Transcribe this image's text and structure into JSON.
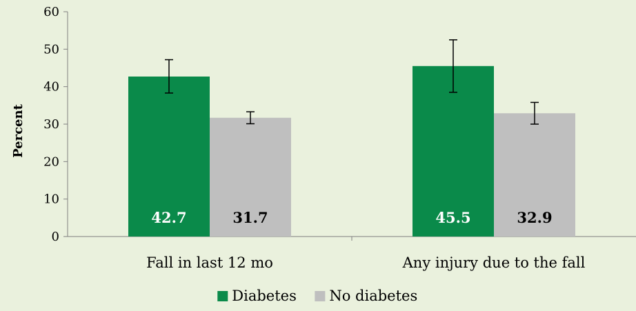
{
  "chart_data": {
    "type": "bar",
    "ylabel": "Percent",
    "xlabel": "",
    "title": "",
    "ylim": [
      0,
      60
    ],
    "yticks": [
      0,
      10,
      20,
      30,
      40,
      50,
      60
    ],
    "categories": [
      "Fall in last 12 mo",
      "Any injury due to the fall"
    ],
    "series": [
      {
        "name": "Diabetes",
        "color": "#0a8a4a",
        "label_color": "#ffffff",
        "values": [
          42.7,
          45.5
        ],
        "labels": [
          "42.7",
          "45.5"
        ],
        "error_low": [
          38.3,
          38.5
        ],
        "error_high": [
          47.2,
          52.5
        ]
      },
      {
        "name": "No diabetes",
        "color": "#bfbfbf",
        "label_color": "#000000",
        "values": [
          31.7,
          32.9
        ],
        "labels": [
          "31.7",
          "32.9"
        ],
        "error_low": [
          30.1,
          30.0
        ],
        "error_high": [
          33.3,
          35.8
        ]
      }
    ],
    "legend_position": "bottom",
    "grid": false,
    "background_color": "#eaf1dd"
  }
}
